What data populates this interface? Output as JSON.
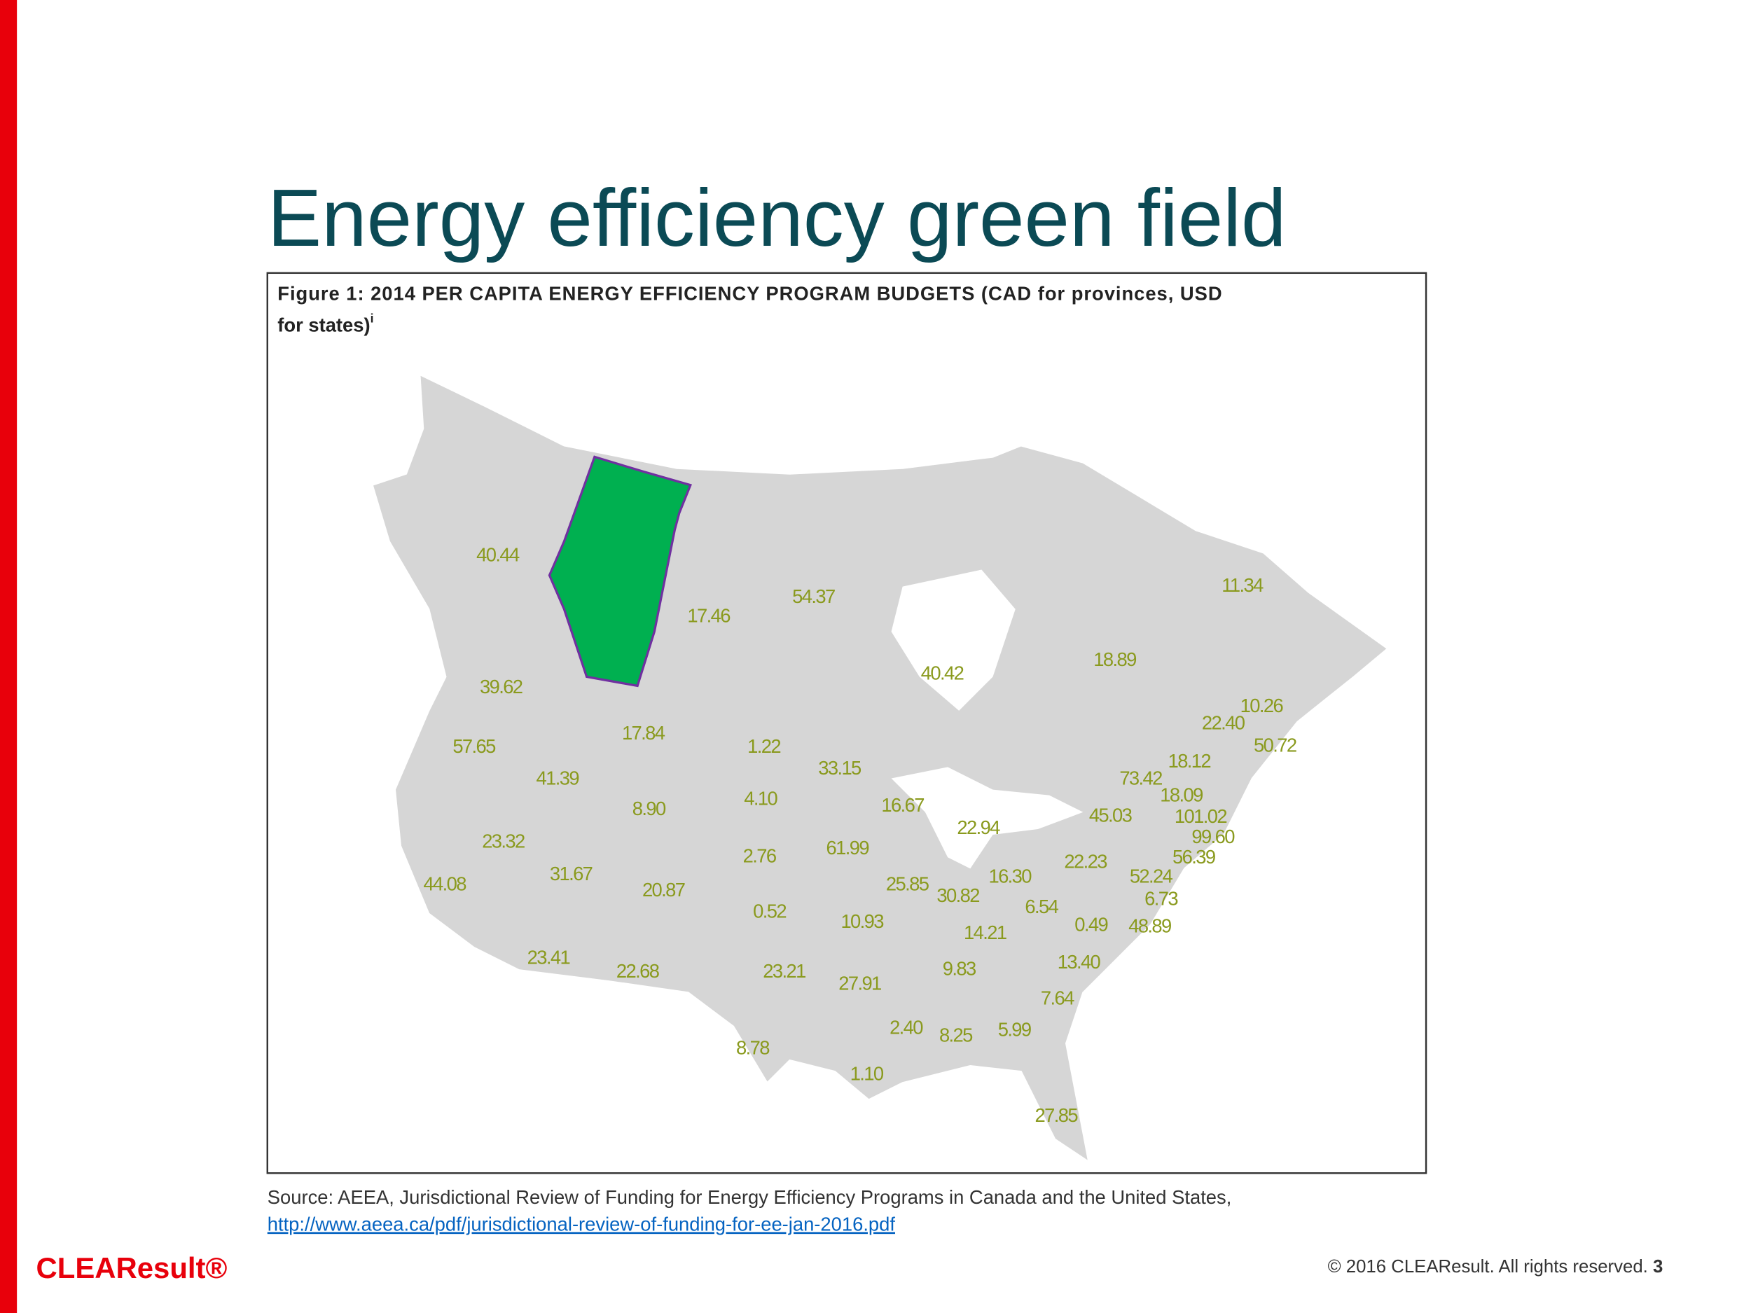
{
  "slide": {
    "title": "Energy efficiency green field",
    "figure": {
      "caption_line1": "Figure 1: 2014 PER CAPITA ENERGY EFFICIENCY PROGRAM BUDGETS (CAD for provinces, USD",
      "caption_line2": "for states)",
      "caption_mark": "i",
      "labels": [
        "40.44",
        "17.46",
        "54.37",
        "40.42",
        "18.89",
        "11.34",
        "39.62",
        "17.84",
        "1.22",
        "57.65",
        "41.39",
        "8.90",
        "4.10",
        "33.15",
        "16.67",
        "22.94",
        "45.03",
        "73.42",
        "18.12",
        "22.40",
        "10.26",
        "50.72",
        "18.09",
        "101.02",
        "99.60",
        "56.39",
        "23.32",
        "2.76",
        "61.99",
        "22.23",
        "52.24",
        "6.73",
        "44.08",
        "31.67",
        "20.87",
        "25.85",
        "30.82",
        "16.30",
        "6.54",
        "0.52",
        "10.93",
        "14.21",
        "0.49",
        "48.89",
        "23.41",
        "22.68",
        "23.21",
        "27.91",
        "9.83",
        "13.40",
        "7.64",
        "2.40",
        "8.25",
        "5.99",
        "8.78",
        "1.10",
        "27.85"
      ]
    },
    "source": "Source: AEEA, Jurisdictional Review of Funding for Energy Efficiency Programs in Canada and the United States,",
    "link": "http://www.aeea.ca/pdf/jurisdictional-review-of-funding-for-ee-jan-2016.pdf",
    "logo": "CLEAResult®",
    "footer": "© 2016 CLEAResult. All rights reserved.",
    "page": "3"
  }
}
